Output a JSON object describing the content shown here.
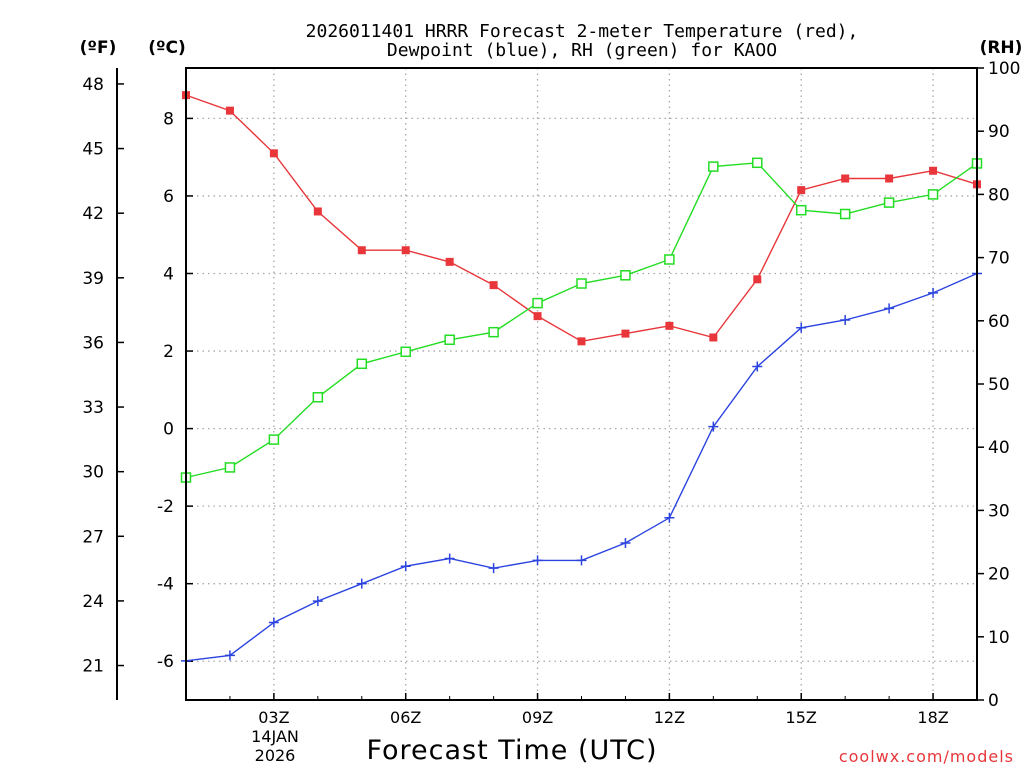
{
  "chart_data": {
    "type": "line",
    "title_line1": "2026011401 HRRR Forecast 2-meter Temperature (red),",
    "title_line2": "Dewpoint (blue), RH (green) for KAOO",
    "xlabel": "Forecast Time (UTC)",
    "credit": "coolwx.com/models",
    "date_label_day": "14JAN",
    "date_label_year": "2026",
    "units_f": "(ºF)",
    "units_c": "(ºC)",
    "units_rh": "(RH)",
    "x_hours": [
      1,
      2,
      3,
      4,
      5,
      6,
      7,
      8,
      9,
      10,
      11,
      12,
      13,
      14,
      15,
      16,
      17,
      18,
      19
    ],
    "xlim": [
      1,
      19
    ],
    "x_ticks": [
      {
        "hour": 3,
        "label": "03Z"
      },
      {
        "hour": 6,
        "label": "06Z"
      },
      {
        "hour": 9,
        "label": "09Z"
      },
      {
        "hour": 12,
        "label": "12Z"
      },
      {
        "hour": 15,
        "label": "15Z"
      },
      {
        "hour": 18,
        "label": "18Z"
      }
    ],
    "celsius_axis": {
      "ylim": [
        -7,
        9.3
      ],
      "ticks": [
        -6,
        -4,
        -2,
        0,
        2,
        4,
        6,
        8
      ]
    },
    "fahrenheit_axis": {
      "ticks": [
        21,
        24,
        27,
        30,
        33,
        36,
        39,
        42,
        45,
        48
      ]
    },
    "rh_axis": {
      "ylim": [
        0,
        100
      ],
      "ticks": [
        0,
        10,
        20,
        30,
        40,
        50,
        60,
        70,
        80,
        90,
        100
      ]
    },
    "series": [
      {
        "name": "2-meter Temperature",
        "color": "#e8363a",
        "marker": "filled-square",
        "axis": "celsius",
        "values": [
          8.6,
          8.2,
          7.1,
          5.6,
          4.6,
          4.6,
          4.3,
          3.7,
          2.9,
          2.25,
          2.45,
          2.65,
          2.35,
          3.85,
          6.15,
          6.45,
          6.45,
          6.65,
          6.3
        ]
      },
      {
        "name": "Dewpoint",
        "color": "#2b44e0",
        "marker": "plus",
        "axis": "celsius",
        "values": [
          -5.99,
          -5.85,
          -5.0,
          -4.45,
          -4.0,
          -3.55,
          -3.35,
          -3.6,
          -3.4,
          -3.4,
          -2.95,
          -2.3,
          0.05,
          1.6,
          2.6,
          2.8,
          3.1,
          3.5,
          4.0
        ]
      },
      {
        "name": "RH",
        "color": "#22dd22",
        "marker": "open-square",
        "axis": "rh",
        "values": [
          35.2,
          36.8,
          41.2,
          47.9,
          53.2,
          55.1,
          57.0,
          58.2,
          62.8,
          65.9,
          67.2,
          69.7,
          84.4,
          85.0,
          77.5,
          76.9,
          78.7,
          80.0,
          84.9
        ]
      }
    ]
  }
}
